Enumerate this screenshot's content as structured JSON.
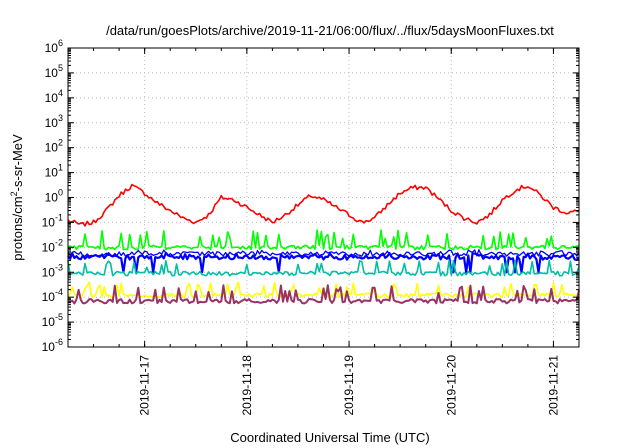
{
  "chart_data": {
    "type": "line",
    "title": "/data/run/goesPlots/archive/2019-11-21/06:00/flux/../flux/5daysMoonFluxes.txt",
    "xlabel": "Coordinated Universal Time (UTC)",
    "ylabel": "protons/cm2-s-sr-MeV",
    "y_scale": "log",
    "ylim": [
      1e-06,
      1000000.0
    ],
    "y_ticks": [
      {
        "base": "10",
        "exp": "-6",
        "value": 1e-06
      },
      {
        "base": "10",
        "exp": "-5",
        "value": 1e-05
      },
      {
        "base": "10",
        "exp": "-4",
        "value": 0.0001
      },
      {
        "base": "10",
        "exp": "-3",
        "value": 0.001
      },
      {
        "base": "10",
        "exp": "-2",
        "value": 0.01
      },
      {
        "base": "10",
        "exp": "-1",
        "value": 0.1
      },
      {
        "base": "10",
        "exp": "0",
        "value": 1
      },
      {
        "base": "10",
        "exp": "1",
        "value": 10
      },
      {
        "base": "10",
        "exp": "2",
        "value": 100
      },
      {
        "base": "10",
        "exp": "3",
        "value": 1000
      },
      {
        "base": "10",
        "exp": "4",
        "value": 10000
      },
      {
        "base": "10",
        "exp": "5",
        "value": 100000
      },
      {
        "base": "10",
        "exp": "6",
        "value": 1000000
      }
    ],
    "x_range": [
      "2019-11-16T06:00",
      "2019-11-21T06:00"
    ],
    "x_ticks": [
      "2019-11-17",
      "2019-11-18",
      "2019-11-19",
      "2019-11-20",
      "2019-11-21"
    ],
    "grid": true,
    "series": [
      {
        "color": "#ff0000",
        "kind": "smooth",
        "points": [
          [
            "2019-11-16T06:00",
            0.12
          ],
          [
            "2019-11-16T09:00",
            0.08
          ],
          [
            "2019-11-16T12:00",
            0.1
          ],
          [
            "2019-11-16T15:00",
            0.3
          ],
          [
            "2019-11-16T18:00",
            1.2
          ],
          [
            "2019-11-16T21:00",
            3.0
          ],
          [
            "2019-11-17T00:00",
            1.5
          ],
          [
            "2019-11-17T03:00",
            0.6
          ],
          [
            "2019-11-17T06:00",
            0.3
          ],
          [
            "2019-11-17T09:00",
            0.15
          ],
          [
            "2019-11-17T12:00",
            0.1
          ],
          [
            "2019-11-17T15:00",
            0.2
          ],
          [
            "2019-11-17T18:00",
            1.0
          ],
          [
            "2019-11-17T21:00",
            0.8
          ],
          [
            "2019-11-18T00:00",
            0.4
          ],
          [
            "2019-11-18T03:00",
            0.2
          ],
          [
            "2019-11-18T06:00",
            0.1
          ],
          [
            "2019-11-18T09:00",
            0.2
          ],
          [
            "2019-11-18T12:00",
            0.5
          ],
          [
            "2019-11-18T15:00",
            1.2
          ],
          [
            "2019-11-18T18:00",
            0.8
          ],
          [
            "2019-11-18T21:00",
            0.4
          ],
          [
            "2019-11-19T00:00",
            0.2
          ],
          [
            "2019-11-19T03:00",
            0.1
          ],
          [
            "2019-11-19T06:00",
            0.15
          ],
          [
            "2019-11-19T09:00",
            0.5
          ],
          [
            "2019-11-19T12:00",
            1.5
          ],
          [
            "2019-11-19T15:00",
            2.5
          ],
          [
            "2019-11-19T18:00",
            2.5
          ],
          [
            "2019-11-19T21:00",
            0.9
          ],
          [
            "2019-11-20T00:00",
            0.3
          ],
          [
            "2019-11-20T03:00",
            0.15
          ],
          [
            "2019-11-20T06:00",
            0.1
          ],
          [
            "2019-11-20T09:00",
            0.2
          ],
          [
            "2019-11-20T12:00",
            0.8
          ],
          [
            "2019-11-20T15:00",
            2.0
          ],
          [
            "2019-11-20T18:00",
            3.0
          ],
          [
            "2019-11-20T21:00",
            1.2
          ],
          [
            "2019-11-21T00:00",
            0.4
          ],
          [
            "2019-11-21T03:00",
            0.25
          ],
          [
            "2019-11-21T06:00",
            0.28
          ]
        ]
      },
      {
        "color": "#00ff00",
        "kind": "noisy",
        "base": 0.01,
        "spike": 0.05,
        "seed": 11
      },
      {
        "color": "#0000ff",
        "kind": "noisy",
        "base": 0.004,
        "spike": 0.006,
        "seed": 23,
        "dip": 0.001,
        "width": 2.2
      },
      {
        "color": "#0000ff",
        "kind": "noisy",
        "base": 0.0055,
        "spike": 0.008,
        "seed": 31,
        "width": 1.3
      },
      {
        "color": "#00bfa5",
        "kind": "noisy",
        "base": 0.0009,
        "spike": 0.003,
        "seed": 37
      },
      {
        "color": "#ffff00",
        "kind": "noisy",
        "base": 0.00012,
        "spike": 0.0004,
        "seed": 43
      },
      {
        "color": "#993366",
        "kind": "noisy",
        "base": 7e-05,
        "spike": 0.0003,
        "seed": 59,
        "width": 2.0
      }
    ]
  }
}
